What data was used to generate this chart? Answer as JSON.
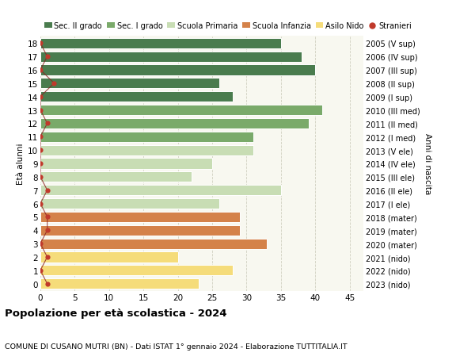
{
  "ages": [
    18,
    17,
    16,
    15,
    14,
    13,
    12,
    11,
    10,
    9,
    8,
    7,
    6,
    5,
    4,
    3,
    2,
    1,
    0
  ],
  "years": [
    "2005 (V sup)",
    "2006 (IV sup)",
    "2007 (III sup)",
    "2008 (II sup)",
    "2009 (I sup)",
    "2010 (III med)",
    "2011 (II med)",
    "2012 (I med)",
    "2013 (V ele)",
    "2014 (IV ele)",
    "2015 (III ele)",
    "2016 (II ele)",
    "2017 (I ele)",
    "2018 (mater)",
    "2019 (mater)",
    "2020 (mater)",
    "2021 (nido)",
    "2022 (nido)",
    "2023 (nido)"
  ],
  "values": [
    35,
    38,
    40,
    26,
    28,
    41,
    39,
    31,
    31,
    25,
    22,
    35,
    26,
    29,
    29,
    33,
    20,
    28,
    23
  ],
  "stranieri": [
    0,
    1,
    0,
    2,
    0,
    0,
    1,
    0,
    0,
    0,
    0,
    1,
    0,
    1,
    1,
    0,
    1,
    0,
    1
  ],
  "bar_colors": [
    "#4a7c4e",
    "#4a7c4e",
    "#4a7c4e",
    "#4a7c4e",
    "#4a7c4e",
    "#7aaa6a",
    "#7aaa6a",
    "#7aaa6a",
    "#c8ddb4",
    "#c8ddb4",
    "#c8ddb4",
    "#c8ddb4",
    "#c8ddb4",
    "#d4824a",
    "#d4824a",
    "#d4824a",
    "#f5dc7a",
    "#f5dc7a",
    "#f5dc7a"
  ],
  "legend_labels": [
    "Sec. II grado",
    "Sec. I grado",
    "Scuola Primaria",
    "Scuola Infanzia",
    "Asilo Nido",
    "Stranieri"
  ],
  "legend_colors": [
    "#4a7c4e",
    "#7aaa6a",
    "#c8ddb4",
    "#d4824a",
    "#f5dc7a",
    "#c0392b"
  ],
  "stranieri_color": "#c0392b",
  "stranieri_line_color": "#8b2020",
  "title": "Popolazione per età scolastica - 2024",
  "subtitle": "COMUNE DI CUSANO MUTRI (BN) - Dati ISTAT 1° gennaio 2024 - Elaborazione TUTTITALIA.IT",
  "ylabel": "Età alunni",
  "ylabel2": "Anni di nascita",
  "xlim": [
    0,
    47
  ],
  "xticks": [
    0,
    5,
    10,
    15,
    20,
    25,
    30,
    35,
    40,
    45
  ],
  "bg_color": "#f8f8f0",
  "grid_color": "#ccccbb"
}
